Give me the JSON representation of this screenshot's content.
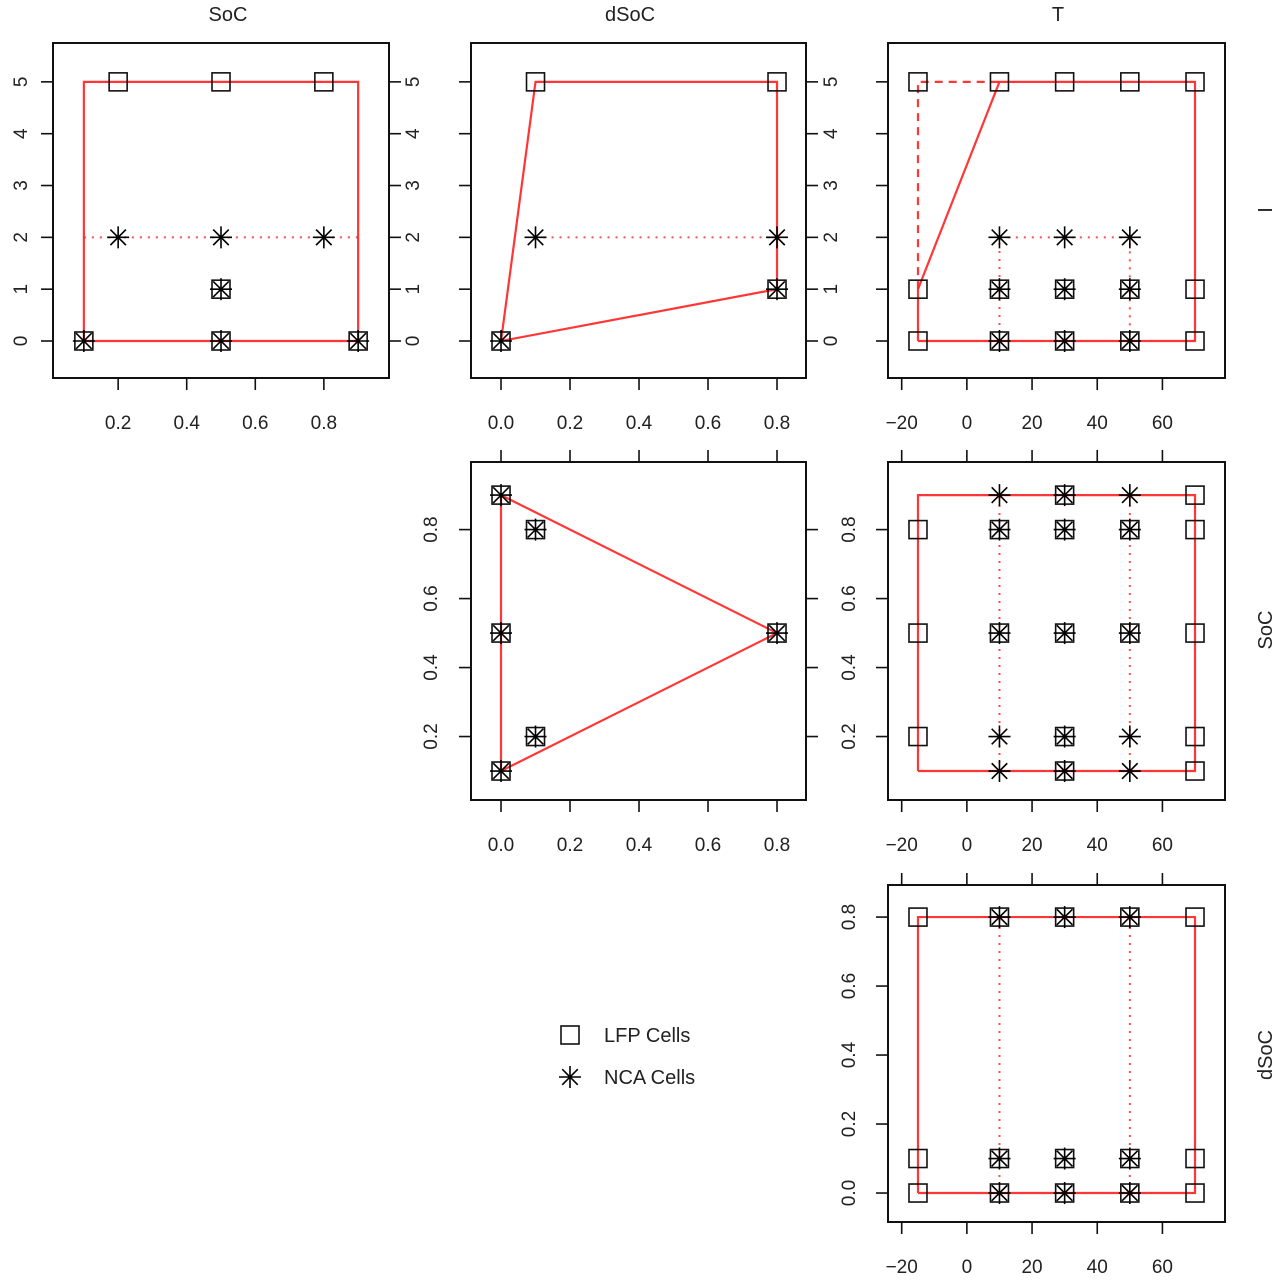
{
  "chart_data": {
    "type": "scatter",
    "layout": "pairs-matrix-upper",
    "variables": [
      "SoC",
      "dSoC",
      "T",
      "I"
    ],
    "column_titles": [
      "SoC",
      "dSoC",
      "T"
    ],
    "row_labels": [
      "I",
      "SoC",
      "dSoC"
    ],
    "legend": {
      "placement": "bottom-center",
      "entries": [
        {
          "label": "LFP Cells",
          "marker": "square"
        },
        {
          "label": "NCA Cells",
          "marker": "asterisk"
        }
      ]
    },
    "colors": {
      "points": "#000000",
      "region": "#ff2020",
      "frame": "#111111"
    },
    "axes": {
      "x": {
        "SoC": {
          "lim": [
            0.01,
            0.99
          ],
          "ticks": [
            0.2,
            0.4,
            0.6,
            0.8
          ],
          "tick_labels": [
            "0.2",
            "0.4",
            "0.6",
            "0.8"
          ]
        },
        "dSoC": {
          "lim": [
            -0.087,
            0.884
          ],
          "ticks": [
            0,
            0.2,
            0.4,
            0.6,
            0.8
          ],
          "tick_labels": [
            "0.0",
            "0.2",
            "0.4",
            "0.6",
            "0.8"
          ]
        },
        "T": {
          "lim": [
            -24.2,
            79.2
          ],
          "ticks": [
            -20,
            0,
            20,
            40,
            60
          ],
          "tick_labels": [
            "−20",
            "0",
            "20",
            "40",
            "60"
          ]
        }
      },
      "y": {
        "I": {
          "lim": [
            -0.714,
            5.75
          ],
          "ticks": [
            0,
            1,
            2,
            3,
            4,
            5
          ],
          "tick_labels": [
            "0",
            "1",
            "2",
            "3",
            "4",
            "5"
          ]
        },
        "SoC": {
          "lim": [
            0.016,
            0.996
          ],
          "ticks": [
            0.2,
            0.4,
            0.6,
            0.8
          ],
          "tick_labels": [
            "0.2",
            "0.4",
            "0.6",
            "0.8"
          ]
        },
        "dSoC": {
          "lim": [
            -0.084,
            0.893
          ],
          "ticks": [
            0,
            0.2,
            0.4,
            0.6,
            0.8
          ],
          "tick_labels": [
            "0.0",
            "0.2",
            "0.4",
            "0.6",
            "0.8"
          ]
        }
      }
    },
    "panels": [
      {
        "row": 0,
        "col": 0,
        "x": "SoC",
        "y": "I",
        "lfp": [
          [
            0.1,
            0
          ],
          [
            0.5,
            0
          ],
          [
            0.9,
            0
          ],
          [
            0.5,
            1
          ],
          [
            0.2,
            5
          ],
          [
            0.5,
            5
          ],
          [
            0.8,
            5
          ]
        ],
        "nca": [
          [
            0.1,
            0
          ],
          [
            0.5,
            0
          ],
          [
            0.9,
            0
          ],
          [
            0.5,
            1
          ],
          [
            0.2,
            2
          ],
          [
            0.5,
            2
          ],
          [
            0.8,
            2
          ]
        ],
        "solid": [
          [
            [
              0.1,
              0
            ],
            [
              0.9,
              0
            ],
            [
              0.9,
              5
            ],
            [
              0.1,
              5
            ],
            [
              0.1,
              0
            ]
          ]
        ],
        "dashed": [],
        "dotted": [
          [
            [
              0.1,
              2
            ],
            [
              0.9,
              2
            ]
          ]
        ]
      },
      {
        "row": 0,
        "col": 1,
        "x": "dSoC",
        "y": "I",
        "lfp": [
          [
            0,
            0
          ],
          [
            0.8,
            1
          ],
          [
            0.1,
            5
          ],
          [
            0.8,
            5
          ]
        ],
        "nca": [
          [
            0,
            0
          ],
          [
            0.8,
            1
          ],
          [
            0.1,
            2
          ],
          [
            0.8,
            2
          ]
        ],
        "solid": [
          [
            [
              0,
              0
            ],
            [
              0.8,
              1
            ],
            [
              0.8,
              5
            ],
            [
              0.1,
              5
            ],
            [
              0,
              0
            ]
          ]
        ],
        "dashed": [],
        "dotted": [
          [
            [
              0.1,
              2
            ],
            [
              0.8,
              2
            ]
          ]
        ]
      },
      {
        "row": 0,
        "col": 2,
        "x": "T",
        "y": "I",
        "lfp": [
          [
            -15,
            0
          ],
          [
            -15,
            1
          ],
          [
            -15,
            5
          ],
          [
            10,
            0
          ],
          [
            10,
            1
          ],
          [
            10,
            5
          ],
          [
            30,
            0
          ],
          [
            30,
            1
          ],
          [
            30,
            5
          ],
          [
            50,
            0
          ],
          [
            50,
            1
          ],
          [
            50,
            5
          ],
          [
            70,
            0
          ],
          [
            70,
            1
          ],
          [
            70,
            5
          ]
        ],
        "nca": [
          [
            10,
            0
          ],
          [
            10,
            1
          ],
          [
            10,
            2
          ],
          [
            30,
            0
          ],
          [
            30,
            1
          ],
          [
            30,
            2
          ],
          [
            50,
            0
          ],
          [
            50,
            1
          ],
          [
            50,
            2
          ]
        ],
        "solid": [
          [
            [
              -15,
              0
            ],
            [
              70,
              0
            ],
            [
              70,
              5
            ],
            [
              10,
              5
            ],
            [
              -15,
              1
            ],
            [
              -15,
              0
            ]
          ]
        ],
        "dashed": [
          [
            [
              -15,
              1
            ],
            [
              -15,
              5
            ],
            [
              10,
              5
            ]
          ]
        ],
        "dotted": [
          [
            [
              10,
              0
            ],
            [
              10,
              2
            ],
            [
              50,
              2
            ],
            [
              50,
              0
            ]
          ]
        ]
      },
      {
        "row": 1,
        "col": 1,
        "x": "dSoC",
        "y": "SoC",
        "lfp": [
          [
            0,
            0.9
          ],
          [
            0.1,
            0.8
          ],
          [
            0,
            0.5
          ],
          [
            0.8,
            0.5
          ],
          [
            0.1,
            0.2
          ],
          [
            0,
            0.1
          ]
        ],
        "nca": [
          [
            0,
            0.9
          ],
          [
            0.1,
            0.8
          ],
          [
            0,
            0.5
          ],
          [
            0.8,
            0.5
          ],
          [
            0.1,
            0.2
          ],
          [
            0,
            0.1
          ]
        ],
        "solid": [
          [
            [
              0,
              0.1
            ],
            [
              0,
              0.9
            ],
            [
              0.8,
              0.5
            ],
            [
              0,
              0.1
            ]
          ]
        ],
        "dashed": [],
        "dotted": []
      },
      {
        "row": 1,
        "col": 2,
        "x": "T",
        "y": "SoC",
        "lfp": [
          [
            -15,
            0.2
          ],
          [
            -15,
            0.5
          ],
          [
            -15,
            0.8
          ],
          [
            10,
            0.5
          ],
          [
            10,
            0.8
          ],
          [
            30,
            0.1
          ],
          [
            30,
            0.2
          ],
          [
            30,
            0.5
          ],
          [
            30,
            0.8
          ],
          [
            30,
            0.9
          ],
          [
            50,
            0.5
          ],
          [
            50,
            0.8
          ],
          [
            70,
            0.1
          ],
          [
            70,
            0.2
          ],
          [
            70,
            0.5
          ],
          [
            70,
            0.8
          ],
          [
            70,
            0.9
          ]
        ],
        "nca": [
          [
            10,
            0.1
          ],
          [
            10,
            0.2
          ],
          [
            10,
            0.5
          ],
          [
            10,
            0.8
          ],
          [
            10,
            0.9
          ],
          [
            30,
            0.1
          ],
          [
            30,
            0.2
          ],
          [
            30,
            0.5
          ],
          [
            30,
            0.8
          ],
          [
            30,
            0.9
          ],
          [
            50,
            0.1
          ],
          [
            50,
            0.2
          ],
          [
            50,
            0.5
          ],
          [
            50,
            0.8
          ],
          [
            50,
            0.9
          ]
        ],
        "solid": [
          [
            [
              -15,
              0.1
            ],
            [
              70,
              0.1
            ],
            [
              70,
              0.9
            ],
            [
              -15,
              0.9
            ],
            [
              -15,
              0.1
            ]
          ]
        ],
        "dashed": [],
        "dotted": [
          [
            [
              10,
              0.1
            ],
            [
              10,
              0.9
            ]
          ],
          [
            [
              50,
              0.1
            ],
            [
              50,
              0.9
            ]
          ]
        ]
      },
      {
        "row": 2,
        "col": 2,
        "x": "T",
        "y": "dSoC",
        "lfp": [
          [
            -15,
            0
          ],
          [
            -15,
            0.1
          ],
          [
            -15,
            0.8
          ],
          [
            10,
            0
          ],
          [
            10,
            0.1
          ],
          [
            10,
            0.8
          ],
          [
            30,
            0
          ],
          [
            30,
            0.1
          ],
          [
            30,
            0.8
          ],
          [
            50,
            0
          ],
          [
            50,
            0.1
          ],
          [
            50,
            0.8
          ],
          [
            70,
            0
          ],
          [
            70,
            0.1
          ],
          [
            70,
            0.8
          ]
        ],
        "nca": [
          [
            10,
            0
          ],
          [
            10,
            0.1
          ],
          [
            10,
            0.8
          ],
          [
            30,
            0
          ],
          [
            30,
            0.1
          ],
          [
            30,
            0.8
          ],
          [
            50,
            0
          ],
          [
            50,
            0.1
          ],
          [
            50,
            0.8
          ]
        ],
        "solid": [
          [
            [
              -15,
              0
            ],
            [
              70,
              0
            ],
            [
              70,
              0.8
            ],
            [
              -15,
              0.8
            ],
            [
              -15,
              0
            ]
          ]
        ],
        "dashed": [],
        "dotted": [
          [
            [
              10,
              0
            ],
            [
              10,
              0.8
            ]
          ],
          [
            [
              50,
              0
            ],
            [
              50,
              0.8
            ]
          ]
        ]
      }
    ]
  }
}
